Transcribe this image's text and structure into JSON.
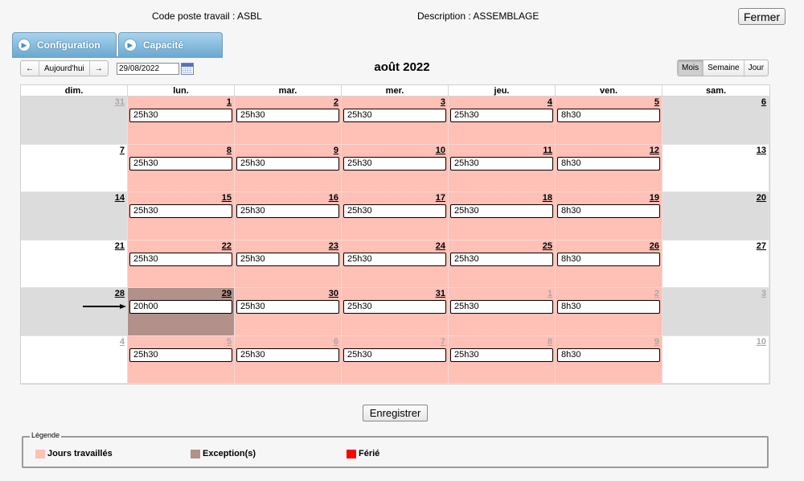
{
  "header": {
    "code_label": "Code poste travail : ASBL",
    "description_label": "Description : ASSEMBLAGE",
    "close_label": "Fermer"
  },
  "tabs": [
    {
      "label": "Configuration"
    },
    {
      "label": "Capacité"
    }
  ],
  "toolbar": {
    "prev": "←",
    "today": "Aujourd'hui",
    "next": "→",
    "date_value": "29/08/2022",
    "month_title": "août 2022",
    "views": [
      "Mois",
      "Semaine",
      "Jour"
    ],
    "active_view": "Mois"
  },
  "calendar": {
    "weekdays": [
      "dim.",
      "lun.",
      "mar.",
      "mer.",
      "jeu.",
      "ven.",
      "sam."
    ],
    "weeks": [
      [
        {
          "day": "31",
          "other": true,
          "type": "weekend",
          "hours": ""
        },
        {
          "day": "1",
          "type": "work",
          "hours": "25h30"
        },
        {
          "day": "2",
          "type": "work",
          "hours": "25h30"
        },
        {
          "day": "3",
          "type": "work",
          "hours": "25h30"
        },
        {
          "day": "4",
          "type": "work",
          "hours": "25h30"
        },
        {
          "day": "5",
          "type": "work",
          "hours": "8h30"
        },
        {
          "day": "6",
          "type": "weekend",
          "hours": ""
        }
      ],
      [
        {
          "day": "7",
          "type": "weekend",
          "hours": ""
        },
        {
          "day": "8",
          "type": "work",
          "hours": "25h30"
        },
        {
          "day": "9",
          "type": "work",
          "hours": "25h30"
        },
        {
          "day": "10",
          "type": "work",
          "hours": "25h30"
        },
        {
          "day": "11",
          "type": "work",
          "hours": "25h30"
        },
        {
          "day": "12",
          "type": "work",
          "hours": "8h30"
        },
        {
          "day": "13",
          "type": "weekend",
          "hours": ""
        }
      ],
      [
        {
          "day": "14",
          "type": "weekend",
          "hours": ""
        },
        {
          "day": "15",
          "type": "work",
          "hours": "25h30"
        },
        {
          "day": "16",
          "type": "work",
          "hours": "25h30"
        },
        {
          "day": "17",
          "type": "work",
          "hours": "25h30"
        },
        {
          "day": "18",
          "type": "work",
          "hours": "25h30"
        },
        {
          "day": "19",
          "type": "work",
          "hours": "8h30"
        },
        {
          "day": "20",
          "type": "weekend",
          "hours": ""
        }
      ],
      [
        {
          "day": "21",
          "type": "weekend",
          "hours": ""
        },
        {
          "day": "22",
          "type": "work",
          "hours": "25h30"
        },
        {
          "day": "23",
          "type": "work",
          "hours": "25h30"
        },
        {
          "day": "24",
          "type": "work",
          "hours": "25h30"
        },
        {
          "day": "25",
          "type": "work",
          "hours": "25h30"
        },
        {
          "day": "26",
          "type": "work",
          "hours": "8h30"
        },
        {
          "day": "27",
          "type": "weekend",
          "hours": ""
        }
      ],
      [
        {
          "day": "28",
          "type": "weekend",
          "hours": ""
        },
        {
          "day": "29",
          "type": "exception",
          "hours": "20h00"
        },
        {
          "day": "30",
          "type": "work",
          "hours": "25h30"
        },
        {
          "day": "31",
          "type": "work",
          "hours": "25h30"
        },
        {
          "day": "1",
          "other": true,
          "type": "work",
          "hours": "25h30"
        },
        {
          "day": "2",
          "other": true,
          "type": "work",
          "hours": "8h30"
        },
        {
          "day": "3",
          "other": true,
          "type": "weekend",
          "hours": ""
        }
      ],
      [
        {
          "day": "4",
          "other": true,
          "type": "weekend",
          "hours": ""
        },
        {
          "day": "5",
          "other": true,
          "type": "work",
          "hours": "25h30"
        },
        {
          "day": "6",
          "other": true,
          "type": "work",
          "hours": "25h30"
        },
        {
          "day": "7",
          "other": true,
          "type": "work",
          "hours": "25h30"
        },
        {
          "day": "8",
          "other": true,
          "type": "work",
          "hours": "25h30"
        },
        {
          "day": "9",
          "other": true,
          "type": "work",
          "hours": "8h30"
        },
        {
          "day": "10",
          "other": true,
          "type": "weekend",
          "hours": ""
        }
      ]
    ]
  },
  "save_label": "Enregistrer",
  "legend": {
    "title": "Légende",
    "items": [
      {
        "label": "Jours travaillés",
        "color": "#ffc0b6"
      },
      {
        "label": "Exception(s)",
        "color": "#b19189"
      },
      {
        "label": "Férié",
        "color": "#ff0000"
      }
    ]
  }
}
